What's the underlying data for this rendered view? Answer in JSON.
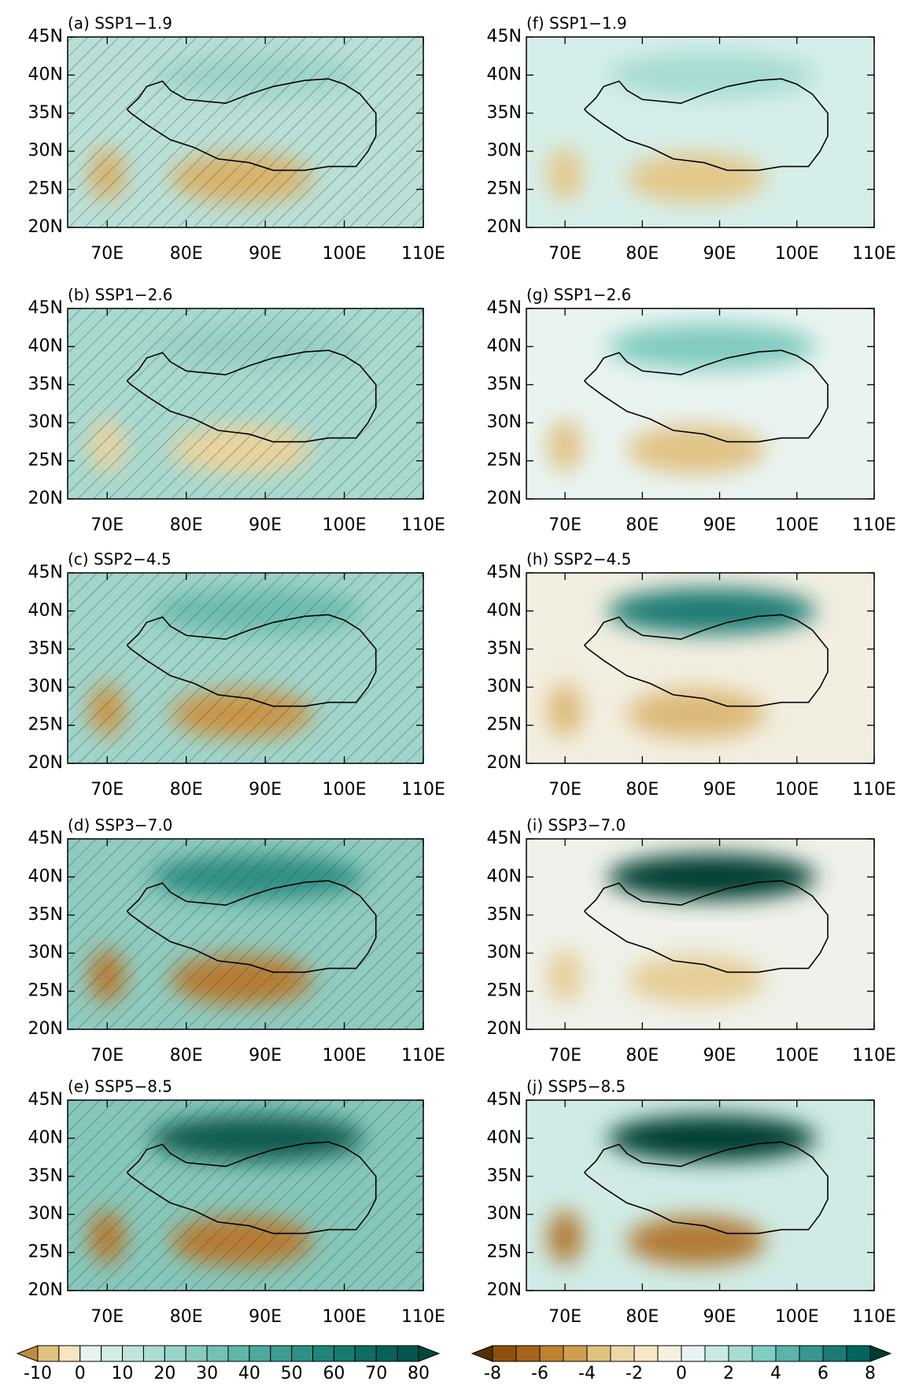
{
  "chart_data": [
    {
      "type": "contour",
      "title": "(a) SSP1−1.9",
      "xlim": [
        65,
        110
      ],
      "ylim": [
        20,
        45
      ],
      "xticks": [
        {
          "value": 70,
          "label": "70E"
        },
        {
          "value": 80,
          "label": "80E"
        },
        {
          "value": 90,
          "label": "90E"
        },
        {
          "value": 100,
          "label": "100E"
        },
        {
          "value": 110,
          "label": "110E"
        }
      ],
      "yticks": [
        {
          "value": 20,
          "label": "20N"
        },
        {
          "value": 25,
          "label": "25N"
        },
        {
          "value": 30,
          "label": "30N"
        },
        {
          "value": 35,
          "label": "35N"
        },
        {
          "value": 40,
          "label": "40N"
        },
        {
          "value": 45,
          "label": "45N"
        }
      ],
      "background": "#b9e0d8",
      "north_color": "#9fd4ca",
      "south_color": "#d9b26a",
      "hatched": true
    },
    {
      "type": "contour",
      "title": "(b) SSP1−2.6",
      "xlim": [
        65,
        110
      ],
      "ylim": [
        20,
        45
      ],
      "xticks": [
        {
          "value": 70,
          "label": "70E"
        },
        {
          "value": 80,
          "label": "80E"
        },
        {
          "value": 90,
          "label": "90E"
        },
        {
          "value": 100,
          "label": "100E"
        },
        {
          "value": 110,
          "label": "110E"
        }
      ],
      "yticks": [
        {
          "value": 20,
          "label": "20N"
        },
        {
          "value": 25,
          "label": "25N"
        },
        {
          "value": 30,
          "label": "30N"
        },
        {
          "value": 35,
          "label": "35N"
        },
        {
          "value": 40,
          "label": "40N"
        },
        {
          "value": 45,
          "label": "45N"
        }
      ],
      "background": "#a8d9cf",
      "north_color": "#98d0c6",
      "south_color": "#e9d39e",
      "hatched": true
    },
    {
      "type": "contour",
      "title": "(c) SSP2−4.5",
      "xlim": [
        65,
        110
      ],
      "ylim": [
        20,
        45
      ],
      "xticks": [
        {
          "value": 70,
          "label": "70E"
        },
        {
          "value": 80,
          "label": "80E"
        },
        {
          "value": 90,
          "label": "90E"
        },
        {
          "value": 100,
          "label": "100E"
        },
        {
          "value": 110,
          "label": "110E"
        }
      ],
      "yticks": [
        {
          "value": 20,
          "label": "20N"
        },
        {
          "value": 25,
          "label": "25N"
        },
        {
          "value": 30,
          "label": "30N"
        },
        {
          "value": 35,
          "label": "35N"
        },
        {
          "value": 40,
          "label": "40N"
        },
        {
          "value": 45,
          "label": "45N"
        }
      ],
      "background": "#a0d5cb",
      "north_color": "#6cbcaf",
      "south_color": "#c9954a",
      "hatched": true
    },
    {
      "type": "contour",
      "title": "(d) SSP3−7.0",
      "xlim": [
        65,
        110
      ],
      "ylim": [
        20,
        45
      ],
      "xticks": [
        {
          "value": 70,
          "label": "70E"
        },
        {
          "value": 80,
          "label": "80E"
        },
        {
          "value": 90,
          "label": "90E"
        },
        {
          "value": 100,
          "label": "100E"
        },
        {
          "value": 110,
          "label": "110E"
        }
      ],
      "yticks": [
        {
          "value": 20,
          "label": "20N"
        },
        {
          "value": 25,
          "label": "25N"
        },
        {
          "value": 30,
          "label": "30N"
        },
        {
          "value": 35,
          "label": "35N"
        },
        {
          "value": 40,
          "label": "40N"
        },
        {
          "value": 45,
          "label": "45N"
        }
      ],
      "background": "#8fcbc0",
      "north_color": "#2f8f82",
      "south_color": "#b77a30",
      "hatched": true
    },
    {
      "type": "contour",
      "title": "(e) SSP5−8.5",
      "xlim": [
        65,
        110
      ],
      "ylim": [
        20,
        45
      ],
      "xticks": [
        {
          "value": 70,
          "label": "70E"
        },
        {
          "value": 80,
          "label": "80E"
        },
        {
          "value": 90,
          "label": "90E"
        },
        {
          "value": 100,
          "label": "100E"
        },
        {
          "value": 110,
          "label": "110E"
        }
      ],
      "yticks": [
        {
          "value": 20,
          "label": "20N"
        },
        {
          "value": 25,
          "label": "25N"
        },
        {
          "value": 30,
          "label": "30N"
        },
        {
          "value": 35,
          "label": "35N"
        },
        {
          "value": 40,
          "label": "40N"
        },
        {
          "value": 45,
          "label": "45N"
        }
      ],
      "background": "#86c7bb",
      "north_color": "#0d5c50",
      "south_color": "#b77a30",
      "hatched": true
    },
    {
      "type": "contour",
      "title": "(f) SSP1−1.9",
      "xlim": [
        65,
        110
      ],
      "ylim": [
        20,
        45
      ],
      "xticks": [
        {
          "value": 70,
          "label": "70E"
        },
        {
          "value": 80,
          "label": "80E"
        },
        {
          "value": 90,
          "label": "90E"
        },
        {
          "value": 100,
          "label": "100E"
        },
        {
          "value": 110,
          "label": "110E"
        }
      ],
      "yticks": [
        {
          "value": 20,
          "label": "20N"
        },
        {
          "value": 25,
          "label": "25N"
        },
        {
          "value": 30,
          "label": "30N"
        },
        {
          "value": 35,
          "label": "35N"
        },
        {
          "value": 40,
          "label": "40N"
        },
        {
          "value": 45,
          "label": "45N"
        }
      ],
      "background": "#d6eee9",
      "north_color": "#a6dcd3",
      "south_color": "#e3c788",
      "hatched": false
    },
    {
      "type": "contour",
      "title": "(g) SSP1−2.6",
      "xlim": [
        65,
        110
      ],
      "ylim": [
        20,
        45
      ],
      "xticks": [
        {
          "value": 70,
          "label": "70E"
        },
        {
          "value": 80,
          "label": "80E"
        },
        {
          "value": 90,
          "label": "90E"
        },
        {
          "value": 100,
          "label": "100E"
        },
        {
          "value": 110,
          "label": "110E"
        }
      ],
      "yticks": [
        {
          "value": 20,
          "label": "20N"
        },
        {
          "value": 25,
          "label": "25N"
        },
        {
          "value": 30,
          "label": "30N"
        },
        {
          "value": 35,
          "label": "35N"
        },
        {
          "value": 40,
          "label": "40N"
        },
        {
          "value": 45,
          "label": "45N"
        }
      ],
      "background": "#e9f4f1",
      "north_color": "#7fcbbf",
      "south_color": "#e0c285",
      "hatched": false
    },
    {
      "type": "contour",
      "title": "(h) SSP2−4.5",
      "xlim": [
        65,
        110
      ],
      "ylim": [
        20,
        45
      ],
      "xticks": [
        {
          "value": 70,
          "label": "70E"
        },
        {
          "value": 80,
          "label": "80E"
        },
        {
          "value": 90,
          "label": "90E"
        },
        {
          "value": 100,
          "label": "100E"
        },
        {
          "value": 110,
          "label": "110E"
        }
      ],
      "yticks": [
        {
          "value": 20,
          "label": "20N"
        },
        {
          "value": 25,
          "label": "25N"
        },
        {
          "value": 30,
          "label": "30N"
        },
        {
          "value": 35,
          "label": "35N"
        },
        {
          "value": 40,
          "label": "40N"
        },
        {
          "value": 45,
          "label": "45N"
        }
      ],
      "background": "#f2eee0",
      "north_color": "#1b7b73",
      "south_color": "#dcb978",
      "hatched": false
    },
    {
      "type": "contour",
      "title": "(i) SSP3−7.0",
      "xlim": [
        65,
        110
      ],
      "ylim": [
        20,
        45
      ],
      "xticks": [
        {
          "value": 70,
          "label": "70E"
        },
        {
          "value": 80,
          "label": "80E"
        },
        {
          "value": 90,
          "label": "90E"
        },
        {
          "value": 100,
          "label": "100E"
        },
        {
          "value": 110,
          "label": "110E"
        }
      ],
      "yticks": [
        {
          "value": 20,
          "label": "20N"
        },
        {
          "value": 25,
          "label": "25N"
        },
        {
          "value": 30,
          "label": "30N"
        },
        {
          "value": 35,
          "label": "35N"
        },
        {
          "value": 40,
          "label": "40N"
        },
        {
          "value": 45,
          "label": "45N"
        }
      ],
      "background": "#eef2ea",
      "north_color": "#003c30",
      "south_color": "#e6cd97",
      "hatched": false
    },
    {
      "type": "contour",
      "title": "(j) SSP5−8.5",
      "xlim": [
        65,
        110
      ],
      "ylim": [
        20,
        45
      ],
      "xticks": [
        {
          "value": 70,
          "label": "70E"
        },
        {
          "value": 80,
          "label": "80E"
        },
        {
          "value": 90,
          "label": "90E"
        },
        {
          "value": 100,
          "label": "100E"
        },
        {
          "value": 110,
          "label": "110E"
        }
      ],
      "yticks": [
        {
          "value": 20,
          "label": "20N"
        },
        {
          "value": 25,
          "label": "25N"
        },
        {
          "value": 30,
          "label": "30N"
        },
        {
          "value": 35,
          "label": "35N"
        },
        {
          "value": 40,
          "label": "40N"
        },
        {
          "value": 45,
          "label": "45N"
        }
      ],
      "background": "#d0ebe5",
      "north_color": "#003c30",
      "south_color": "#b07a35",
      "hatched": false
    }
  ],
  "colorbars": [
    {
      "levels": [
        -10,
        -5,
        0,
        5,
        10,
        15,
        20,
        25,
        30,
        35,
        40,
        45,
        50,
        55,
        60,
        65,
        70,
        75,
        80
      ],
      "ticks": [
        -10,
        0,
        10,
        20,
        30,
        40,
        50,
        60,
        70,
        80
      ],
      "colors": [
        "#bf8a3a",
        "#dfc27d",
        "#f3e6c0",
        "#e6f3f0",
        "#d2ece6",
        "#c0e5dd",
        "#acddd4",
        "#98d3c9",
        "#86cbbf",
        "#72c1b4",
        "#5eb6a8",
        "#4baa9c",
        "#3a9d90",
        "#2b9184",
        "#1f8578",
        "#157a6d",
        "#0d6e62",
        "#076257",
        "#03564c",
        "#014a40"
      ]
    },
    {
      "levels": [
        -8,
        -7,
        -6,
        -5,
        -4,
        -3,
        -2,
        -1,
        0,
        1,
        2,
        3,
        4,
        5,
        6,
        7,
        8
      ],
      "ticks": [
        -8,
        -6,
        -4,
        -2,
        0,
        2,
        4,
        6,
        8
      ],
      "colors": [
        "#543005",
        "#8c510a",
        "#a6641a",
        "#bf812d",
        "#cf9e4d",
        "#dfc27d",
        "#ebd8a6",
        "#f6e8c3",
        "#f5efe0",
        "#e6f3f0",
        "#c7eae5",
        "#a6dcd3",
        "#80cdc1",
        "#5ab4ac",
        "#35978f",
        "#1b7b73",
        "#01665e",
        "#003c30"
      ]
    }
  ]
}
